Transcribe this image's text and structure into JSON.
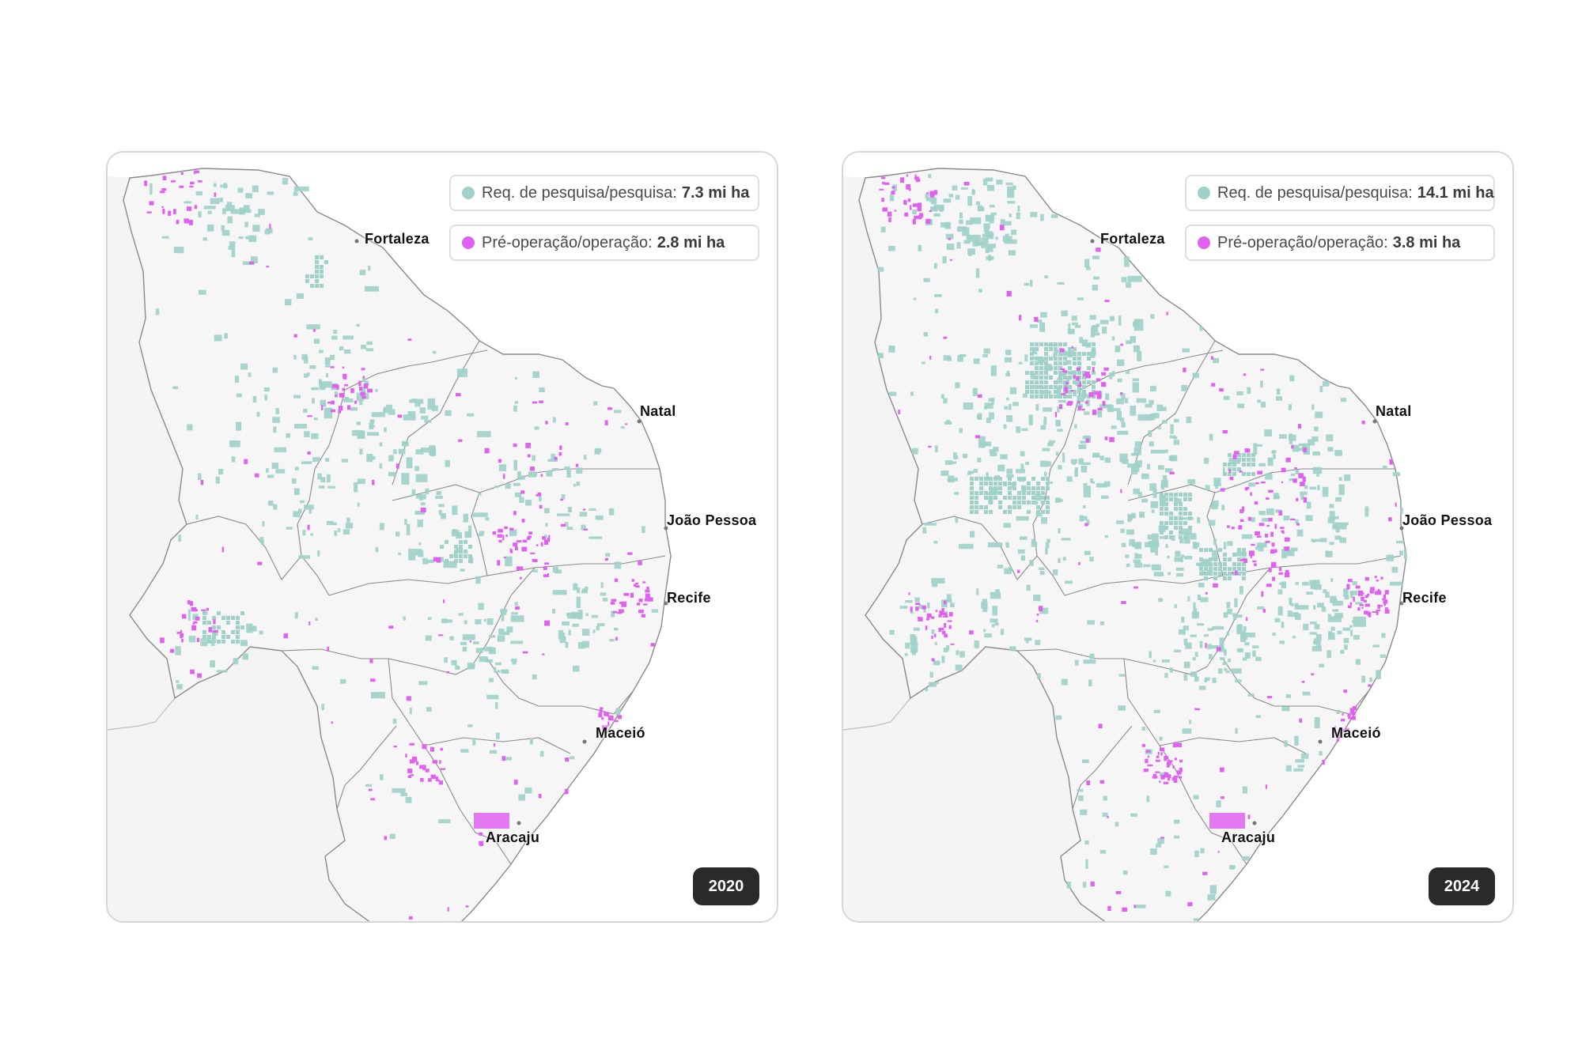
{
  "colors": {
    "research": "#9fd1c9",
    "operation": "#e061f0",
    "land": "#f6f6f6",
    "border": "#8a8a8a"
  },
  "maps": [
    {
      "year": "2020",
      "legend": {
        "research_label": "Req. de pesquisa/pesquisa:",
        "research_value": "7.3 mi ha",
        "operation_label": "Pré-operação/operação:",
        "operation_value": "2.8 mi ha"
      },
      "density": {
        "research": 0.52,
        "operation": 0.74
      }
    },
    {
      "year": "2024",
      "legend": {
        "research_label": "Req. de pesquisa/pesquisa:",
        "research_value": "14.1 mi ha",
        "operation_label": "Pré-operação/operação:",
        "operation_value": "3.8 mi ha"
      },
      "density": {
        "research": 1.0,
        "operation": 1.0
      }
    }
  ],
  "cities": [
    "Fortaleza",
    "Natal",
    "João Pessoa",
    "Recife",
    "Maceió",
    "Aracaju"
  ]
}
